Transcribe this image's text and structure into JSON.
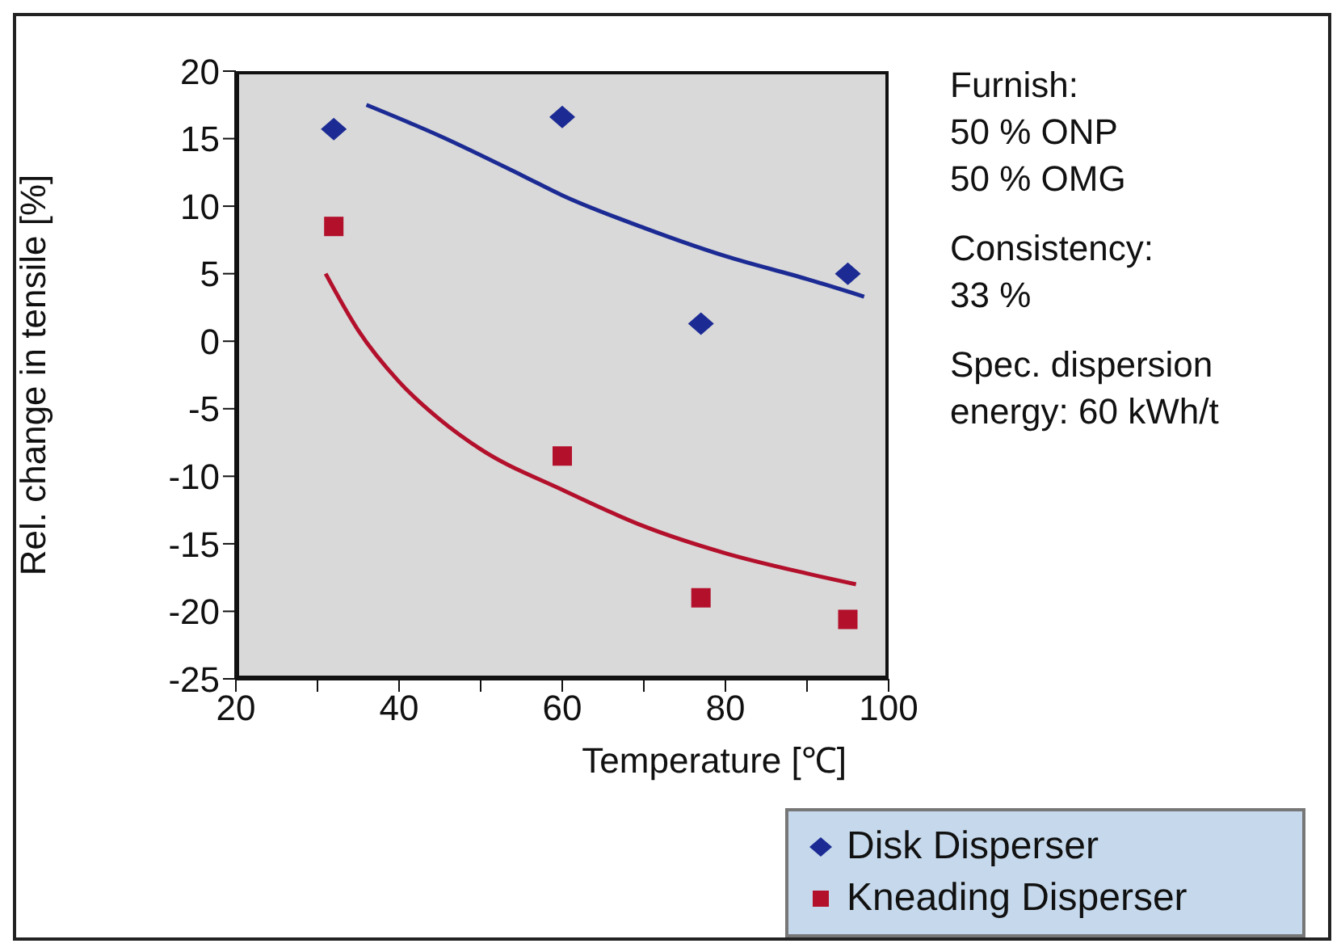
{
  "chart_data": {
    "type": "scatter",
    "xlabel": "Temperature [℃]",
    "ylabel": "Rel. change in tensile [%]",
    "xlim": [
      20,
      100
    ],
    "xticks": [
      20,
      {
        "value": 30,
        "label": null
      },
      40,
      {
        "value": 50,
        "label": null
      },
      60,
      {
        "value": 70,
        "label": null
      },
      80,
      {
        "value": 90,
        "label": null
      },
      100
    ],
    "ylim": [
      -25,
      20
    ],
    "yticks": [
      -25,
      -20,
      -15,
      -10,
      -5,
      0,
      5,
      10,
      15,
      20
    ],
    "grid": false,
    "legend": "bottom right",
    "series": [
      {
        "name": "Disk Disperser",
        "color": "#1c2b94",
        "marker": "diamond",
        "x": [
          32,
          60,
          77,
          95
        ],
        "values": [
          15.7,
          16.6,
          1.3,
          5.0
        ]
      },
      {
        "name": "Kneading Disperser",
        "color": "#b3102c",
        "marker": "square",
        "x": [
          32,
          60,
          77,
          95
        ],
        "values": [
          8.5,
          -8.5,
          -19,
          -20.6
        ]
      },
      {
        "type": "line",
        "color": "#1c2b94",
        "marker": "none",
        "x": [
          36,
          45,
          55,
          60,
          70,
          80,
          90,
          97
        ],
        "values": [
          17.5,
          15.2,
          12.3,
          10.8,
          8.4,
          6.3,
          4.6,
          3.3
        ]
      },
      {
        "type": "line",
        "color": "#b3102c",
        "marker": "none",
        "x": [
          31,
          35,
          40,
          45,
          50,
          60,
          70,
          80,
          90,
          96
        ],
        "values": [
          5,
          0.8,
          -3,
          -5.8,
          -8,
          -11,
          -13.7,
          -15.7,
          -17.2,
          -18
        ]
      }
    ],
    "annotations": [
      "Furnish:\n50 % ONP\n50 % OMG",
      "Consistency:\n33 %",
      "Spec. dispersion\nenergy: 60 kWh/t"
    ]
  }
}
